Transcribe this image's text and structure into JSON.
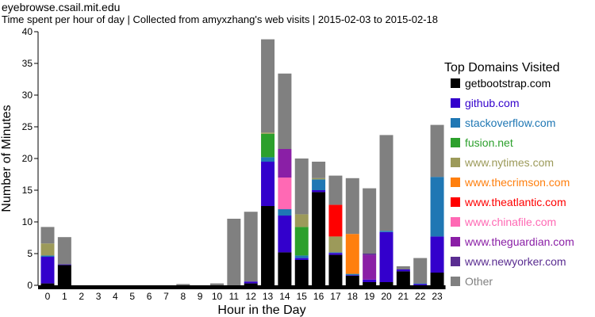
{
  "site_title": "eyebrowse.csail.mit.edu",
  "subtitle": "Time spent per hour of day | Collected from amyxzhang's web visits | 2015-02-03 to 2015-02-18",
  "chart_data": {
    "type": "bar",
    "stacked": true,
    "xlabel": "Hour in the Day",
    "ylabel": "Number of Minutes",
    "ylim": [
      0,
      40
    ],
    "yticks": [
      0,
      5,
      10,
      15,
      20,
      25,
      30,
      35,
      40
    ],
    "categories": [
      "0",
      "1",
      "2",
      "3",
      "4",
      "5",
      "6",
      "7",
      "8",
      "9",
      "10",
      "11",
      "12",
      "13",
      "14",
      "15",
      "16",
      "17",
      "18",
      "19",
      "20",
      "21",
      "22",
      "23"
    ],
    "legend_title": "Top Domains Visited",
    "legend_position": "right",
    "series": [
      {
        "name": "getbootstrap.com",
        "color": "#000000",
        "values": [
          0.3,
          3.2,
          0,
          0,
          0,
          0,
          0,
          0,
          0,
          0,
          0,
          0,
          0.3,
          12.5,
          5.2,
          4.0,
          14.7,
          4.8,
          1.5,
          0.5,
          0.5,
          2.2,
          0,
          2.0
        ]
      },
      {
        "name": "github.com",
        "color": "#3300cc",
        "values": [
          4.2,
          0.1,
          0,
          0,
          0,
          0,
          0,
          0,
          0,
          0,
          0,
          0,
          0.3,
          7.0,
          5.8,
          0.3,
          0.3,
          0.3,
          0.1,
          0.4,
          7.9,
          0.3,
          0.2,
          5.7
        ]
      },
      {
        "name": "stackoverflow.com",
        "color": "#1f77b4",
        "values": [
          0.2,
          0,
          0,
          0,
          0,
          0,
          0,
          0,
          0,
          0,
          0,
          0,
          0,
          0.7,
          1.0,
          0.4,
          1.7,
          0.1,
          0.2,
          0,
          0.2,
          0,
          0.1,
          9.4
        ]
      },
      {
        "name": "fusion.net",
        "color": "#2ca02c",
        "values": [
          0,
          0,
          0,
          0,
          0,
          0,
          0,
          0,
          0,
          0,
          0,
          0,
          0,
          3.7,
          0,
          4.5,
          0,
          0,
          0,
          0,
          0,
          0,
          0,
          0
        ]
      },
      {
        "name": "www.nytimes.com",
        "color": "#9c9a5a",
        "values": [
          1.9,
          0,
          0,
          0,
          0,
          0,
          0,
          0,
          0,
          0,
          0,
          0,
          0,
          0.2,
          0,
          2.0,
          0.2,
          2.5,
          0,
          0,
          0,
          0,
          0,
          0
        ]
      },
      {
        "name": "www.thecrimson.com",
        "color": "#ff7f0e",
        "values": [
          0,
          0,
          0,
          0,
          0,
          0,
          0,
          0,
          0,
          0,
          0,
          0,
          0,
          0,
          0,
          0,
          0,
          0,
          6.3,
          0,
          0,
          0,
          0,
          0
        ]
      },
      {
        "name": "www.theatlantic.com",
        "color": "#ff0000",
        "values": [
          0,
          0,
          0,
          0,
          0,
          0,
          0,
          0,
          0,
          0,
          0,
          0,
          0,
          0,
          0,
          0,
          0,
          5.0,
          0,
          0,
          0,
          0,
          0,
          0
        ]
      },
      {
        "name": "www.chinafile.com",
        "color": "#ff69b4",
        "values": [
          0,
          0,
          0,
          0,
          0,
          0,
          0,
          0,
          0,
          0,
          0,
          0,
          0,
          0,
          5.0,
          0,
          0,
          0,
          0,
          0,
          0,
          0,
          0,
          0
        ]
      },
      {
        "name": "www.theguardian.com",
        "color": "#8a1fa6",
        "values": [
          0,
          0,
          0,
          0,
          0,
          0,
          0,
          0,
          0,
          0,
          0,
          0,
          0,
          0,
          4.5,
          0,
          0,
          0,
          0,
          3.9,
          0,
          0,
          0,
          0
        ]
      },
      {
        "name": "www.newyorker.com",
        "color": "#5a2d91",
        "values": [
          0,
          0,
          0,
          0,
          0,
          0,
          0,
          0,
          0,
          0,
          0,
          0,
          0,
          0,
          0,
          0,
          0,
          0,
          0,
          0.2,
          0,
          0,
          0,
          0
        ]
      },
      {
        "name": "Other",
        "color": "#808080",
        "values": [
          2.6,
          4.3,
          0,
          0,
          0,
          0,
          0,
          0,
          0.2,
          0,
          0.3,
          10.5,
          11.0,
          14.7,
          11.9,
          8.8,
          2.6,
          4.6,
          8.8,
          10.3,
          15.1,
          0.5,
          4.0,
          8.2
        ]
      }
    ]
  }
}
